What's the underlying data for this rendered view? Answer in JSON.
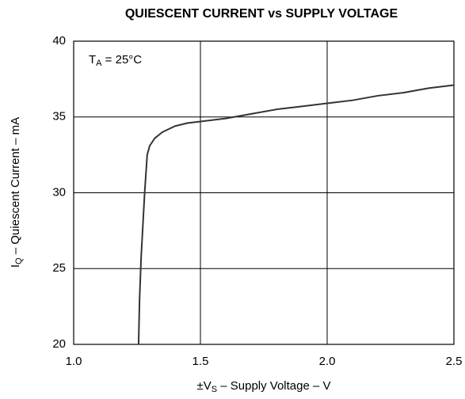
{
  "chart_data": {
    "type": "line",
    "title": "QUIESCENT CURRENT vs SUPPLY VOLTAGE",
    "annotation": [
      "T",
      "A",
      " = 25°C"
    ],
    "x_label": [
      "±V",
      "S",
      " – Supply Voltage – V"
    ],
    "y_label": [
      "I",
      "Q",
      " – Quiescent Current – mA"
    ],
    "xlim": [
      1.0,
      2.5
    ],
    "xticks": [
      {
        "value": 1.0,
        "label": "1.0"
      },
      1.5,
      {
        "value": 2.0,
        "label": "2.0"
      },
      2.5
    ],
    "ylim": [
      20,
      40
    ],
    "yticks": [
      20,
      25,
      30,
      35,
      40
    ],
    "grid": true,
    "color": "#333333",
    "x": [
      1.256,
      1.26,
      1.266,
      1.28,
      1.29,
      1.3,
      1.32,
      1.35,
      1.4,
      1.45,
      1.5,
      1.6,
      1.7,
      1.8,
      1.9,
      2.0,
      2.1,
      2.2,
      2.3,
      2.4,
      2.5
    ],
    "values": [
      20,
      23,
      25.7,
      30,
      32.5,
      33.1,
      33.6,
      34.0,
      34.4,
      34.6,
      34.7,
      34.9,
      35.2,
      35.5,
      35.7,
      35.9,
      36.1,
      36.4,
      36.6,
      36.9,
      37.1
    ]
  }
}
